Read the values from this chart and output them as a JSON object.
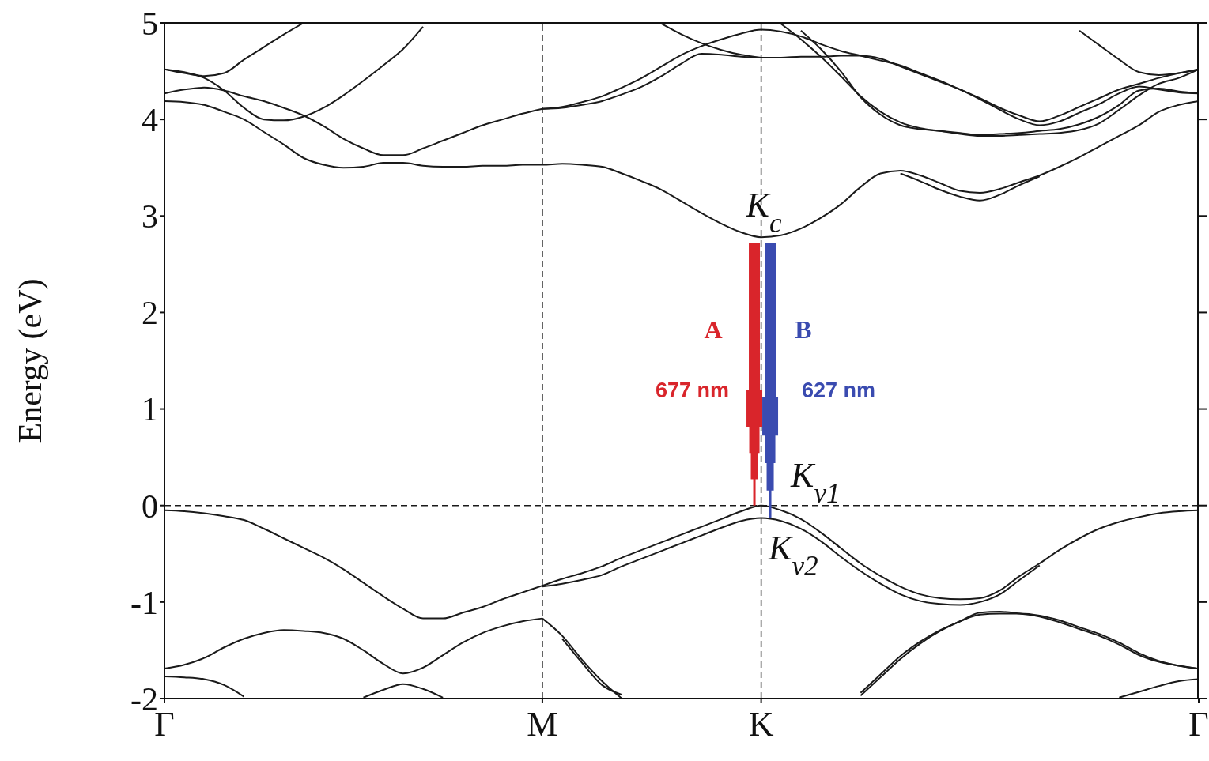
{
  "chart_data": {
    "type": "line",
    "ylabel": "Energy (eV)",
    "categories": [
      "Γ",
      null,
      null,
      null,
      null,
      null,
      null,
      null,
      null,
      null,
      null,
      null,
      null,
      null,
      null,
      null,
      null,
      null,
      null,
      "M",
      null,
      null,
      null,
      null,
      null,
      null,
      null,
      null,
      null,
      null,
      "K",
      null,
      null,
      null,
      null,
      null,
      null,
      null,
      null,
      null,
      null,
      null,
      null,
      null,
      null,
      null,
      null,
      null,
      null,
      null,
      null,
      null,
      "Γ"
    ],
    "ylim": [
      -2,
      5
    ],
    "yticks": [
      -2,
      -1,
      0,
      1,
      2,
      3,
      4,
      5
    ],
    "ref_lines": [
      {
        "axis": "x",
        "value": "M",
        "color": "#1a1a1a",
        "line_style": "dashed"
      },
      {
        "axis": "x",
        "value": "K",
        "color": "#1a1a1a",
        "line_style": "dashed"
      },
      {
        "axis": "y",
        "value": 0,
        "color": "#1a1a1a",
        "line_style": "dashed"
      }
    ],
    "annotations": [
      {
        "text": "K$_{c}$",
        "x": "K",
        "y": 2.78
      },
      {
        "text": "K$_{v1}$",
        "x": "K",
        "y": 0
      },
      {
        "text": "K$_{v2}$",
        "x": "K",
        "y": -0.13
      },
      "A",
      "677 nm",
      "B",
      "627 nm"
    ],
    "series": [
      {
        "color": "#1a1a1a",
        "values": [
          -0.05,
          -0.06,
          -0.08,
          -0.11,
          -0.15,
          -0.24,
          -0.34,
          -0.44,
          -0.54,
          -0.66,
          -0.8,
          -0.94,
          -1.07,
          -1.17,
          -1.17,
          -1.11,
          -1.05,
          -0.97,
          -0.9,
          -0.83,
          -0.76,
          -0.7,
          -0.63,
          -0.54,
          -0.46,
          -0.38,
          -0.3,
          -0.22,
          -0.14,
          -0.06,
          0,
          -0.05,
          -0.14,
          -0.28,
          -0.44,
          -0.6,
          -0.73,
          -0.84,
          -0.92,
          -0.96,
          -0.97,
          -0.96,
          -0.88,
          -0.73,
          -0.6,
          -0.46,
          -0.34,
          -0.24,
          -0.17,
          -0.12,
          -0.08,
          -0.06,
          -0.05
        ]
      },
      {
        "color": "#1a1a1a",
        "values": [
          null,
          null,
          null,
          null,
          null,
          null,
          null,
          null,
          null,
          null,
          null,
          null,
          null,
          null,
          null,
          null,
          null,
          null,
          null,
          -0.84,
          -0.81,
          -0.77,
          -0.72,
          -0.63,
          -0.55,
          -0.47,
          -0.39,
          -0.31,
          -0.23,
          -0.16,
          -0.13,
          -0.16,
          -0.24,
          -0.37,
          -0.53,
          -0.68,
          -0.81,
          -0.92,
          -0.99,
          -1.02,
          -1.03,
          -1,
          -0.92,
          -0.77,
          -0.62,
          null,
          null,
          null,
          null,
          null,
          null,
          null,
          null
        ]
      },
      {
        "color": "#1a1a1a",
        "values": [
          -1.69,
          -1.65,
          -1.58,
          -1.47,
          -1.38,
          -1.32,
          -1.29,
          -1.3,
          -1.32,
          -1.38,
          -1.5,
          -1.64,
          -1.74,
          -1.68,
          -1.55,
          -1.42,
          -1.32,
          -1.25,
          -1.2,
          -1.17,
          null,
          null,
          null,
          null,
          null,
          null,
          null,
          null,
          null,
          null,
          null,
          null,
          null,
          null,
          null,
          null,
          null,
          null,
          null,
          null,
          null,
          null,
          null,
          null,
          null,
          null,
          null,
          null,
          null,
          null,
          null,
          null,
          null
        ]
      },
      {
        "color": "#1a1a1a",
        "values": [
          null,
          null,
          null,
          null,
          null,
          null,
          null,
          null,
          null,
          null,
          null,
          null,
          null,
          null,
          null,
          null,
          null,
          null,
          null,
          -1.17,
          -1.35,
          -1.6,
          -1.82,
          -2,
          null,
          null,
          null,
          null,
          null,
          null,
          null,
          null,
          null,
          null,
          null,
          null,
          null,
          null,
          null,
          null,
          null,
          null,
          null,
          null,
          null,
          null,
          null,
          null,
          null,
          null,
          null,
          null,
          null
        ]
      },
      {
        "color": "#1a1a1a",
        "values": [
          null,
          null,
          null,
          null,
          null,
          null,
          null,
          null,
          null,
          null,
          null,
          null,
          null,
          null,
          null,
          null,
          null,
          null,
          null,
          null,
          -1.38,
          -1.63,
          -1.86,
          -1.96,
          null,
          null,
          null,
          null,
          null,
          null,
          null,
          null,
          null,
          null,
          null,
          null,
          null,
          null,
          null,
          null,
          null,
          null,
          null,
          null,
          null,
          null,
          null,
          null,
          null,
          null,
          null,
          null,
          null
        ]
      },
      {
        "color": "#1a1a1a",
        "values": [
          -1.77,
          -1.78,
          -1.8,
          -1.86,
          -1.98,
          null,
          null,
          null,
          null,
          null,
          null,
          null,
          null,
          null,
          null,
          null,
          null,
          null,
          null,
          null,
          null,
          null,
          null,
          null,
          null,
          null,
          null,
          null,
          null,
          null,
          null,
          null,
          null,
          null,
          null,
          null,
          null,
          null,
          null,
          null,
          null,
          null,
          null,
          null,
          null,
          null,
          null,
          null,
          null,
          null,
          null,
          null,
          null
        ]
      },
      {
        "color": "#1a1a1a",
        "values": [
          null,
          null,
          null,
          null,
          null,
          null,
          null,
          null,
          null,
          null,
          -1.99,
          -1.91,
          -1.85,
          -1.9,
          -1.99,
          null,
          null,
          null,
          null,
          null,
          null,
          null,
          null,
          null,
          null,
          null,
          null,
          null,
          null,
          null,
          null,
          null,
          null,
          null,
          null,
          null,
          null,
          null,
          null,
          null,
          null,
          null,
          null,
          null,
          null,
          null,
          null,
          null,
          null,
          null,
          null,
          null,
          null
        ]
      },
      {
        "color": "#1a1a1a",
        "values": [
          null,
          null,
          null,
          null,
          null,
          null,
          null,
          null,
          null,
          null,
          null,
          null,
          null,
          null,
          null,
          null,
          null,
          null,
          null,
          null,
          null,
          null,
          null,
          null,
          null,
          null,
          null,
          null,
          null,
          null,
          null,
          null,
          null,
          null,
          null,
          -1.94,
          -1.75,
          -1.56,
          -1.41,
          -1.29,
          -1.2,
          -1.11,
          -1.1,
          -1.12,
          -1.15,
          -1.21,
          -1.28,
          -1.35,
          -1.44,
          -1.55,
          -1.62,
          -1.66,
          -1.69
        ]
      },
      {
        "color": "#1a1a1a",
        "values": [
          null,
          null,
          null,
          null,
          null,
          null,
          null,
          null,
          null,
          null,
          null,
          null,
          null,
          null,
          null,
          null,
          null,
          null,
          null,
          null,
          null,
          null,
          null,
          null,
          null,
          null,
          null,
          null,
          null,
          null,
          null,
          null,
          null,
          null,
          null,
          -1.97,
          -1.78,
          -1.59,
          -1.43,
          -1.3,
          -1.2,
          -1.13,
          -1.12,
          -1.12,
          -1.14,
          -1.19,
          -1.26,
          -1.33,
          -1.42,
          -1.53,
          -1.61,
          -1.66,
          -1.69
        ]
      },
      {
        "color": "#1a1a1a",
        "values": [
          null,
          null,
          null,
          null,
          null,
          null,
          null,
          null,
          null,
          null,
          null,
          null,
          null,
          null,
          null,
          null,
          null,
          null,
          null,
          null,
          null,
          null,
          null,
          null,
          null,
          null,
          null,
          null,
          null,
          null,
          null,
          null,
          null,
          null,
          null,
          null,
          null,
          null,
          null,
          null,
          null,
          null,
          null,
          null,
          null,
          null,
          null,
          null,
          -1.99,
          -1.93,
          -1.87,
          -1.82,
          -1.8
        ]
      },
      {
        "color": "#1a1a1a",
        "values": [
          4.19,
          4.18,
          4.15,
          4.08,
          4,
          3.87,
          3.74,
          3.6,
          3.53,
          3.5,
          3.51,
          3.55,
          3.55,
          3.52,
          3.51,
          3.51,
          3.52,
          3.52,
          3.53,
          3.53,
          3.54,
          3.53,
          3.51,
          3.44,
          3.36,
          3.27,
          3.15,
          3.03,
          2.92,
          2.83,
          2.78,
          2.8,
          2.87,
          2.98,
          3.12,
          3.3,
          3.44,
          3.47,
          3.42,
          3.34,
          3.26,
          3.24,
          3.28,
          3.35,
          3.42,
          3.51,
          3.61,
          3.72,
          3.83,
          3.94,
          4.08,
          4.15,
          4.19
        ]
      },
      {
        "color": "#1a1a1a",
        "values": [
          null,
          null,
          null,
          null,
          null,
          null,
          null,
          null,
          null,
          null,
          null,
          null,
          null,
          null,
          null,
          null,
          null,
          null,
          null,
          null,
          null,
          null,
          null,
          null,
          null,
          null,
          null,
          null,
          null,
          null,
          null,
          null,
          null,
          null,
          null,
          null,
          null,
          3.44,
          3.36,
          3.27,
          3.2,
          3.16,
          3.22,
          3.32,
          3.41,
          null,
          null,
          null,
          null,
          null,
          null,
          null,
          null
        ]
      },
      {
        "color": "#1a1a1a",
        "values": [
          4.52,
          4.48,
          4.45,
          4.48,
          4.62,
          4.75,
          4.88,
          5,
          null,
          null,
          null,
          null,
          null,
          null,
          null,
          null,
          null,
          null,
          null,
          null,
          null,
          null,
          null,
          null,
          null,
          null,
          null,
          null,
          null,
          null,
          null,
          null,
          null,
          null,
          null,
          null,
          null,
          null,
          null,
          null,
          null,
          null,
          null,
          null,
          null,
          null,
          null,
          null,
          null,
          null,
          null,
          null,
          null
        ]
      },
      {
        "color": "#1a1a1a",
        "values": [
          4.27,
          4.31,
          4.33,
          4.3,
          4.24,
          4.19,
          4.12,
          4.04,
          3.93,
          3.8,
          3.7,
          3.63,
          3.63,
          3.7,
          3.78,
          3.86,
          3.94,
          4,
          4.06,
          4.11,
          null,
          null,
          null,
          null,
          null,
          null,
          null,
          null,
          null,
          null,
          null,
          null,
          null,
          null,
          null,
          null,
          null,
          null,
          null,
          null,
          null,
          null,
          null,
          null,
          null,
          null,
          null,
          null,
          null,
          null,
          null,
          null,
          null
        ]
      },
      {
        "color": "#1a1a1a",
        "values": [
          4.52,
          4.49,
          4.43,
          4.3,
          4.12,
          4,
          3.99,
          4.03,
          4.12,
          4.25,
          4.4,
          4.56,
          4.73,
          4.96,
          null,
          null,
          null,
          null,
          null,
          null,
          null,
          null,
          null,
          null,
          null,
          null,
          null,
          null,
          null,
          null,
          null,
          null,
          null,
          null,
          null,
          null,
          null,
          null,
          null,
          null,
          null,
          null,
          null,
          null,
          null,
          null,
          null,
          null,
          null,
          null,
          null,
          null,
          null
        ]
      },
      {
        "color": "#1a1a1a",
        "values": [
          null,
          null,
          null,
          null,
          null,
          null,
          null,
          null,
          null,
          null,
          null,
          null,
          null,
          null,
          null,
          null,
          null,
          null,
          null,
          4.11,
          4.13,
          4.18,
          4.24,
          4.33,
          4.43,
          4.55,
          4.67,
          4.76,
          4.83,
          4.89,
          4.93,
          4.91,
          4.86,
          4.78,
          4.71,
          4.66,
          4.61,
          4.56,
          4.48,
          4.4,
          4.31,
          4.22,
          4.12,
          4.04,
          3.98,
          4.04,
          4.13,
          4.22,
          4.31,
          4.37,
          4.43,
          4.48,
          4.52
        ]
      },
      {
        "color": "#1a1a1a",
        "values": [
          null,
          null,
          null,
          null,
          null,
          null,
          null,
          null,
          null,
          null,
          null,
          null,
          null,
          null,
          null,
          null,
          null,
          null,
          null,
          4.11,
          4.12,
          4.15,
          4.19,
          4.26,
          4.34,
          4.45,
          4.58,
          4.68,
          4.67,
          4.65,
          4.64,
          4.64,
          4.65,
          4.65,
          4.66,
          4.66,
          4.63,
          4.55,
          4.47,
          4.39,
          4.31,
          4.21,
          4.1,
          4,
          3.94,
          3.98,
          4.07,
          4.16,
          4.27,
          4.34,
          4.31,
          4.28,
          4.27
        ]
      },
      {
        "color": "#1a1a1a",
        "values": [
          null,
          null,
          null,
          null,
          null,
          null,
          null,
          null,
          null,
          null,
          null,
          null,
          null,
          null,
          null,
          null,
          null,
          null,
          null,
          null,
          null,
          null,
          null,
          null,
          null,
          4.99,
          4.88,
          4.79,
          4.72,
          4.67,
          4.64,
          null,
          null,
          null,
          null,
          null,
          null,
          null,
          null,
          null,
          null,
          null,
          null,
          null,
          null,
          null,
          null,
          null,
          null,
          null,
          null,
          null,
          null
        ]
      },
      {
        "color": "#1a1a1a",
        "values": [
          null,
          null,
          null,
          null,
          null,
          null,
          null,
          null,
          null,
          null,
          null,
          null,
          null,
          null,
          null,
          null,
          null,
          null,
          null,
          null,
          null,
          null,
          null,
          null,
          null,
          null,
          null,
          null,
          null,
          null,
          null,
          4.99,
          4.83,
          4.65,
          4.45,
          4.24,
          4.08,
          3.97,
          3.91,
          3.88,
          3.85,
          3.83,
          3.83,
          3.84,
          3.85,
          3.86,
          3.89,
          3.96,
          4.1,
          4.25,
          4.37,
          4.43,
          4.52
        ]
      },
      {
        "color": "#1a1a1a",
        "values": [
          null,
          null,
          null,
          null,
          null,
          null,
          null,
          null,
          null,
          null,
          null,
          null,
          null,
          null,
          null,
          null,
          null,
          null,
          null,
          null,
          null,
          null,
          null,
          null,
          null,
          null,
          null,
          null,
          null,
          null,
          null,
          null,
          4.92,
          4.73,
          4.5,
          4.23,
          4.05,
          3.94,
          3.9,
          3.88,
          3.86,
          3.84,
          3.85,
          3.86,
          3.88,
          3.9,
          3.95,
          4.03,
          4.15,
          4.3,
          4.32,
          4.29,
          4.27
        ]
      },
      {
        "color": "#1a1a1a",
        "values": [
          null,
          null,
          null,
          null,
          null,
          null,
          null,
          null,
          null,
          null,
          null,
          null,
          null,
          null,
          null,
          null,
          null,
          null,
          null,
          null,
          null,
          null,
          null,
          null,
          null,
          null,
          null,
          null,
          null,
          null,
          null,
          null,
          null,
          null,
          null,
          null,
          null,
          null,
          null,
          null,
          null,
          null,
          null,
          null,
          null,
          null,
          4.92,
          4.77,
          4.62,
          4.49,
          4.46,
          4.48,
          4.52
        ]
      }
    ]
  }
}
